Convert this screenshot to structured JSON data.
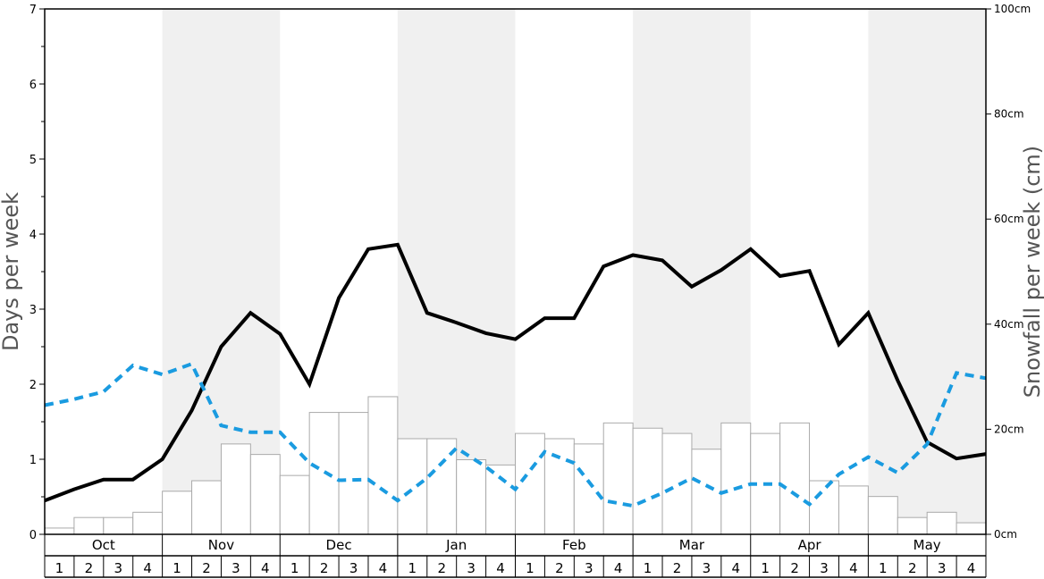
{
  "chart_data": {
    "type": "bar+line",
    "left_axis": {
      "label": "Days per week",
      "ticks": [
        "0",
        "1",
        "2",
        "3",
        "4",
        "5",
        "6",
        "7"
      ],
      "ylim": [
        0,
        7
      ]
    },
    "right_axis": {
      "label": "Snowfall per week (cm)",
      "ticks": [
        "0cm",
        "20cm",
        "40cm",
        "60cm",
        "80cm",
        "100cm"
      ],
      "ylim": [
        0,
        100
      ]
    },
    "months": [
      "Oct",
      "Nov",
      "Dec",
      "Jan",
      "Feb",
      "Mar",
      "Apr",
      "May"
    ],
    "weeks": [
      "1",
      "2",
      "3",
      "4"
    ],
    "shaded_months": [
      "Nov",
      "Jan",
      "Mar",
      "May"
    ],
    "series": [
      {
        "kind": "bar",
        "axis": "right",
        "color": "#ffffff",
        "stroke": "#aaaaaa",
        "values": [
          1.2,
          3.2,
          3.2,
          4.2,
          8.2,
          10.2,
          17.2,
          15.2,
          11.2,
          23.2,
          23.2,
          26.2,
          18.2,
          18.2,
          14.2,
          13.2,
          19.2,
          18.2,
          17.2,
          21.2,
          20.2,
          19.2,
          16.2,
          21.2,
          19.2,
          21.2,
          10.2,
          9.2,
          7.2,
          3.2,
          4.2,
          2.2
        ]
      },
      {
        "kind": "line",
        "axis": "left",
        "color": "#000000",
        "style": "solid",
        "values": [
          0.45,
          0.6,
          0.73,
          0.73,
          1.0,
          1.65,
          2.5,
          2.95,
          2.67,
          2.0,
          3.15,
          3.8,
          3.86,
          2.95,
          2.82,
          2.68,
          2.6,
          2.88,
          2.88,
          3.57,
          3.72,
          3.65,
          3.3,
          3.52,
          3.8,
          3.44,
          3.51,
          2.53,
          2.95,
          2.05,
          1.23,
          1.01,
          1.07
        ]
      },
      {
        "kind": "line",
        "axis": "left",
        "color": "#1a9be0",
        "style": "dashed",
        "values": [
          1.72,
          1.8,
          1.9,
          2.25,
          2.13,
          2.27,
          1.45,
          1.36,
          1.36,
          0.95,
          0.72,
          0.73,
          0.45,
          0.75,
          1.15,
          0.9,
          0.6,
          1.1,
          0.95,
          0.45,
          0.38,
          0.55,
          0.75,
          0.55,
          0.67,
          0.67,
          0.4,
          0.8,
          1.03,
          0.82,
          1.2,
          2.15,
          2.08
        ]
      }
    ]
  }
}
